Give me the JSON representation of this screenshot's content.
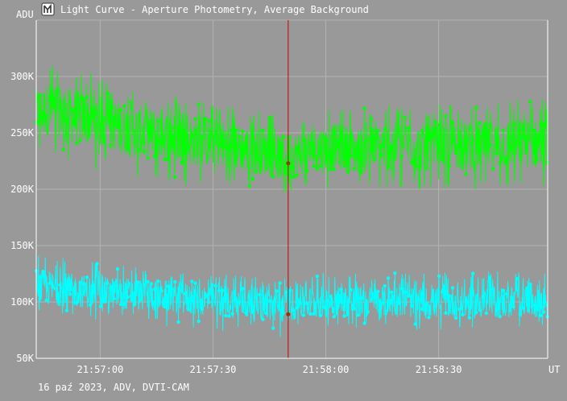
{
  "window": {
    "title": "Light Curve - Aperture Photometry, Average Background",
    "app_icon": "tangra-logo-icon"
  },
  "footer": {
    "caption": "16 paź 2023, ADV, DVTI-CAM"
  },
  "colors": {
    "background": "#999999",
    "grid": "#b3b3b3",
    "axis": "#ffffff",
    "series_1": "#00ff00",
    "series_2": "#00ffff",
    "cursor": "#cc0000"
  },
  "chart_data": {
    "type": "line",
    "title": "Light Curve - Aperture Photometry, Average Background",
    "ylabel": "ADU",
    "xlabel": "UT",
    "x_unit": "UT",
    "x_start": "21:56:43",
    "x_end": "21:58:59",
    "ylim": [
      50000,
      350000
    ],
    "y_ticks": [
      {
        "value": 50000,
        "label": "50K"
      },
      {
        "value": 100000,
        "label": "100K"
      },
      {
        "value": 150000,
        "label": "150K"
      },
      {
        "value": 200000,
        "label": "200K"
      },
      {
        "value": 250000,
        "label": "250K"
      },
      {
        "value": 300000,
        "label": "300K"
      }
    ],
    "x_ticks": [
      {
        "value": "21:57:00",
        "label": "21:57:00"
      },
      {
        "value": "21:57:30",
        "label": "21:57:30"
      },
      {
        "value": "21:58:00",
        "label": "21:58:00"
      },
      {
        "value": "21:58:30",
        "label": "21:58:30"
      }
    ],
    "grid": true,
    "cursor_time": "21:57:50",
    "series": [
      {
        "color": "#00ff00",
        "cursor_value": 223000,
        "x": [
          "21:56:43",
          "21:56:48",
          "21:56:53",
          "21:56:58",
          "21:57:03",
          "21:57:08",
          "21:57:13",
          "21:57:18",
          "21:57:23",
          "21:57:28",
          "21:57:33",
          "21:57:38",
          "21:57:43",
          "21:57:48",
          "21:57:53",
          "21:57:58",
          "21:58:03",
          "21:58:08",
          "21:58:13",
          "21:58:18",
          "21:58:23",
          "21:58:28",
          "21:58:33",
          "21:58:38",
          "21:58:43",
          "21:58:48",
          "21:58:53",
          "21:58:58"
        ],
        "values": [
          268000,
          271000,
          264000,
          262000,
          258000,
          252000,
          250000,
          247000,
          243000,
          242000,
          240000,
          236000,
          234000,
          228000,
          232000,
          236000,
          238000,
          234000,
          236000,
          240000,
          238000,
          236000,
          240000,
          238000,
          239000,
          240000,
          241000,
          240000
        ],
        "low": [
          228000,
          232000,
          222000,
          218000,
          212000,
          206000,
          204000,
          204000,
          200000,
          198000,
          198000,
          196000,
          194000,
          190000,
          196000,
          198000,
          200000,
          196000,
          198000,
          200000,
          199000,
          197000,
          200000,
          198000,
          199000,
          200000,
          201000,
          202000
        ],
        "high": [
          305000,
          318000,
          312000,
          302000,
          298000,
          290000,
          288000,
          285000,
          280000,
          278000,
          276000,
          272000,
          270000,
          264000,
          268000,
          272000,
          275000,
          270000,
          274000,
          278000,
          276000,
          274000,
          278000,
          276000,
          277000,
          280000,
          282000,
          284000
        ]
      },
      {
        "color": "#00ffff",
        "cursor_value": 89000,
        "x": [
          "21:56:43",
          "21:56:48",
          "21:56:53",
          "21:56:58",
          "21:57:03",
          "21:57:08",
          "21:57:13",
          "21:57:18",
          "21:57:23",
          "21:57:28",
          "21:57:33",
          "21:57:38",
          "21:57:43",
          "21:57:48",
          "21:57:53",
          "21:57:58",
          "21:58:03",
          "21:58:08",
          "21:58:13",
          "21:58:18",
          "21:58:23",
          "21:58:28",
          "21:58:33",
          "21:58:38",
          "21:58:43",
          "21:58:48",
          "21:58:53",
          "21:58:58"
        ],
        "values": [
          113000,
          112000,
          110000,
          109000,
          108000,
          107000,
          106000,
          105000,
          103000,
          102000,
          101000,
          99000,
          98000,
          96000,
          99000,
          100000,
          101000,
          100000,
          100000,
          101000,
          100000,
          99000,
          100000,
          99000,
          100000,
          100000,
          101000,
          100000
        ],
        "low": [
          92000,
          88000,
          86000,
          84000,
          82000,
          80000,
          80000,
          78000,
          76000,
          75000,
          74000,
          72000,
          70000,
          66000,
          72000,
          74000,
          76000,
          75000,
          75000,
          76000,
          75000,
          74000,
          75000,
          74000,
          75000,
          75000,
          76000,
          76000
        ],
        "high": [
          150000,
          144000,
          140000,
          136000,
          134000,
          132000,
          131000,
          130000,
          128000,
          127000,
          126000,
          124000,
          123000,
          120000,
          124000,
          126000,
          128000,
          126000,
          126000,
          127000,
          126000,
          125000,
          126000,
          125000,
          127000,
          128000,
          130000,
          132000
        ]
      }
    ]
  }
}
